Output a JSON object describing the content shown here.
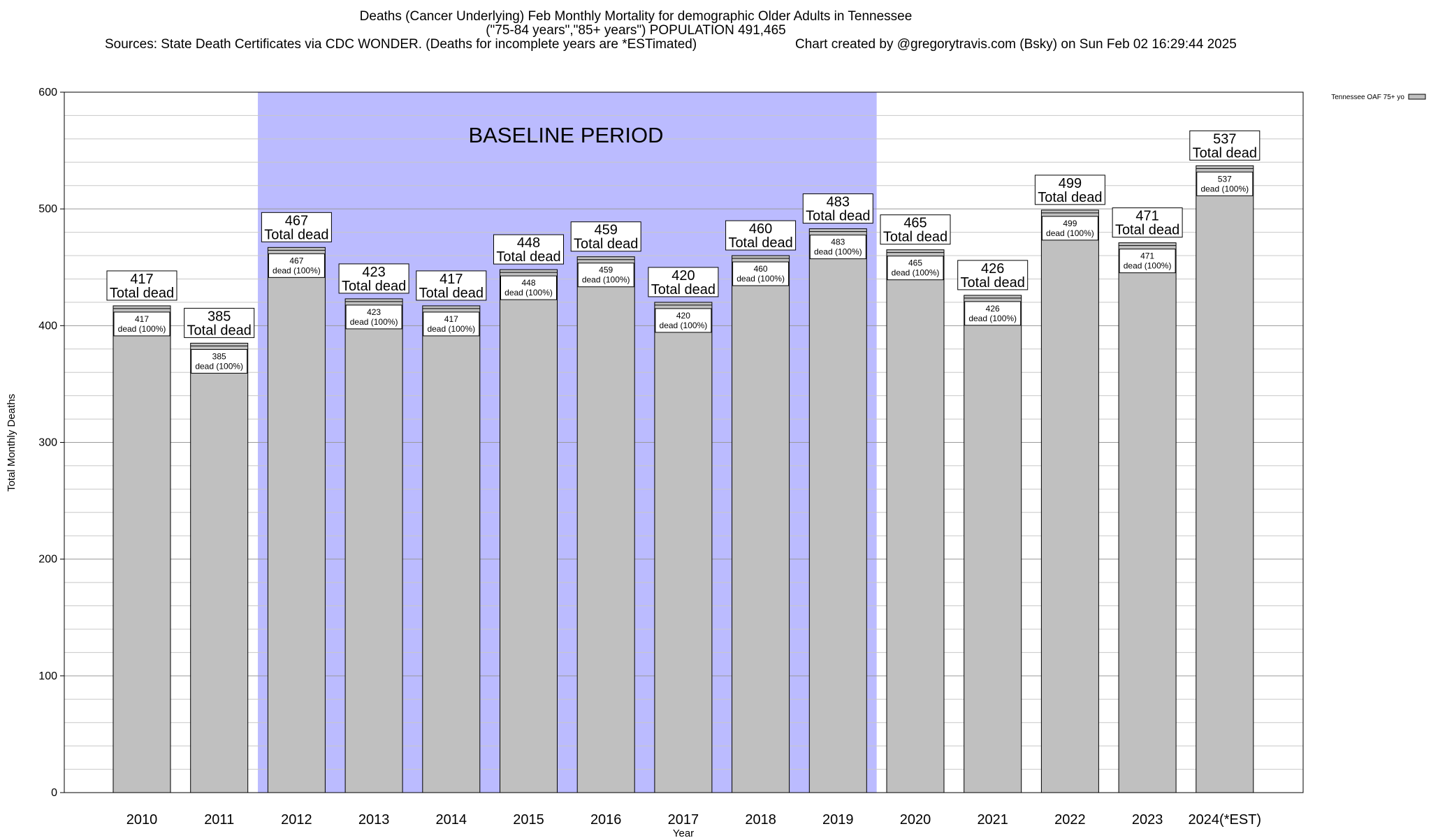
{
  "header": {
    "title_line1": "Deaths (Cancer Underlying) Feb Monthly Mortality for demographic Older Adults in Tennessee",
    "title_line2": "(\"75-84 years\",\"85+ years\") POPULATION 491,465",
    "sources": "Sources: State Death Certificates via CDC WONDER. (Deaths for incomplete years are *ESTimated)",
    "credit": "Chart created by @gregorytravis.com (Bsky) on Sun Feb 02 16:29:44 2025"
  },
  "chart_data": {
    "type": "bar",
    "title": "Deaths (Cancer Underlying) Feb Monthly Mortality for demographic Older Adults in Tennessee",
    "xlabel": "Year",
    "ylabel": "Total Monthly Deaths",
    "ylim": [
      0,
      600
    ],
    "yticks": [
      0,
      100,
      200,
      300,
      400,
      500,
      600
    ],
    "grid": true,
    "legend_position": "top-right",
    "categories": [
      "2010",
      "2011",
      "2012",
      "2013",
      "2014",
      "2015",
      "2016",
      "2017",
      "2018",
      "2019",
      "2020",
      "2021",
      "2022",
      "2023",
      "2024(*EST)"
    ],
    "series": [
      {
        "name": "Tennessee OAF 75+ yo",
        "color": "#c0c0c0",
        "values": [
          417,
          385,
          467,
          423,
          417,
          448,
          459,
          420,
          460,
          483,
          465,
          426,
          499,
          471,
          537
        ]
      }
    ],
    "top_label_suffix": "Total dead",
    "inner_label_suffix": "dead (100%)",
    "baseline": {
      "label": "BASELINE PERIOD",
      "start": "2012",
      "end": "2019",
      "color": "#bbbbff"
    }
  }
}
